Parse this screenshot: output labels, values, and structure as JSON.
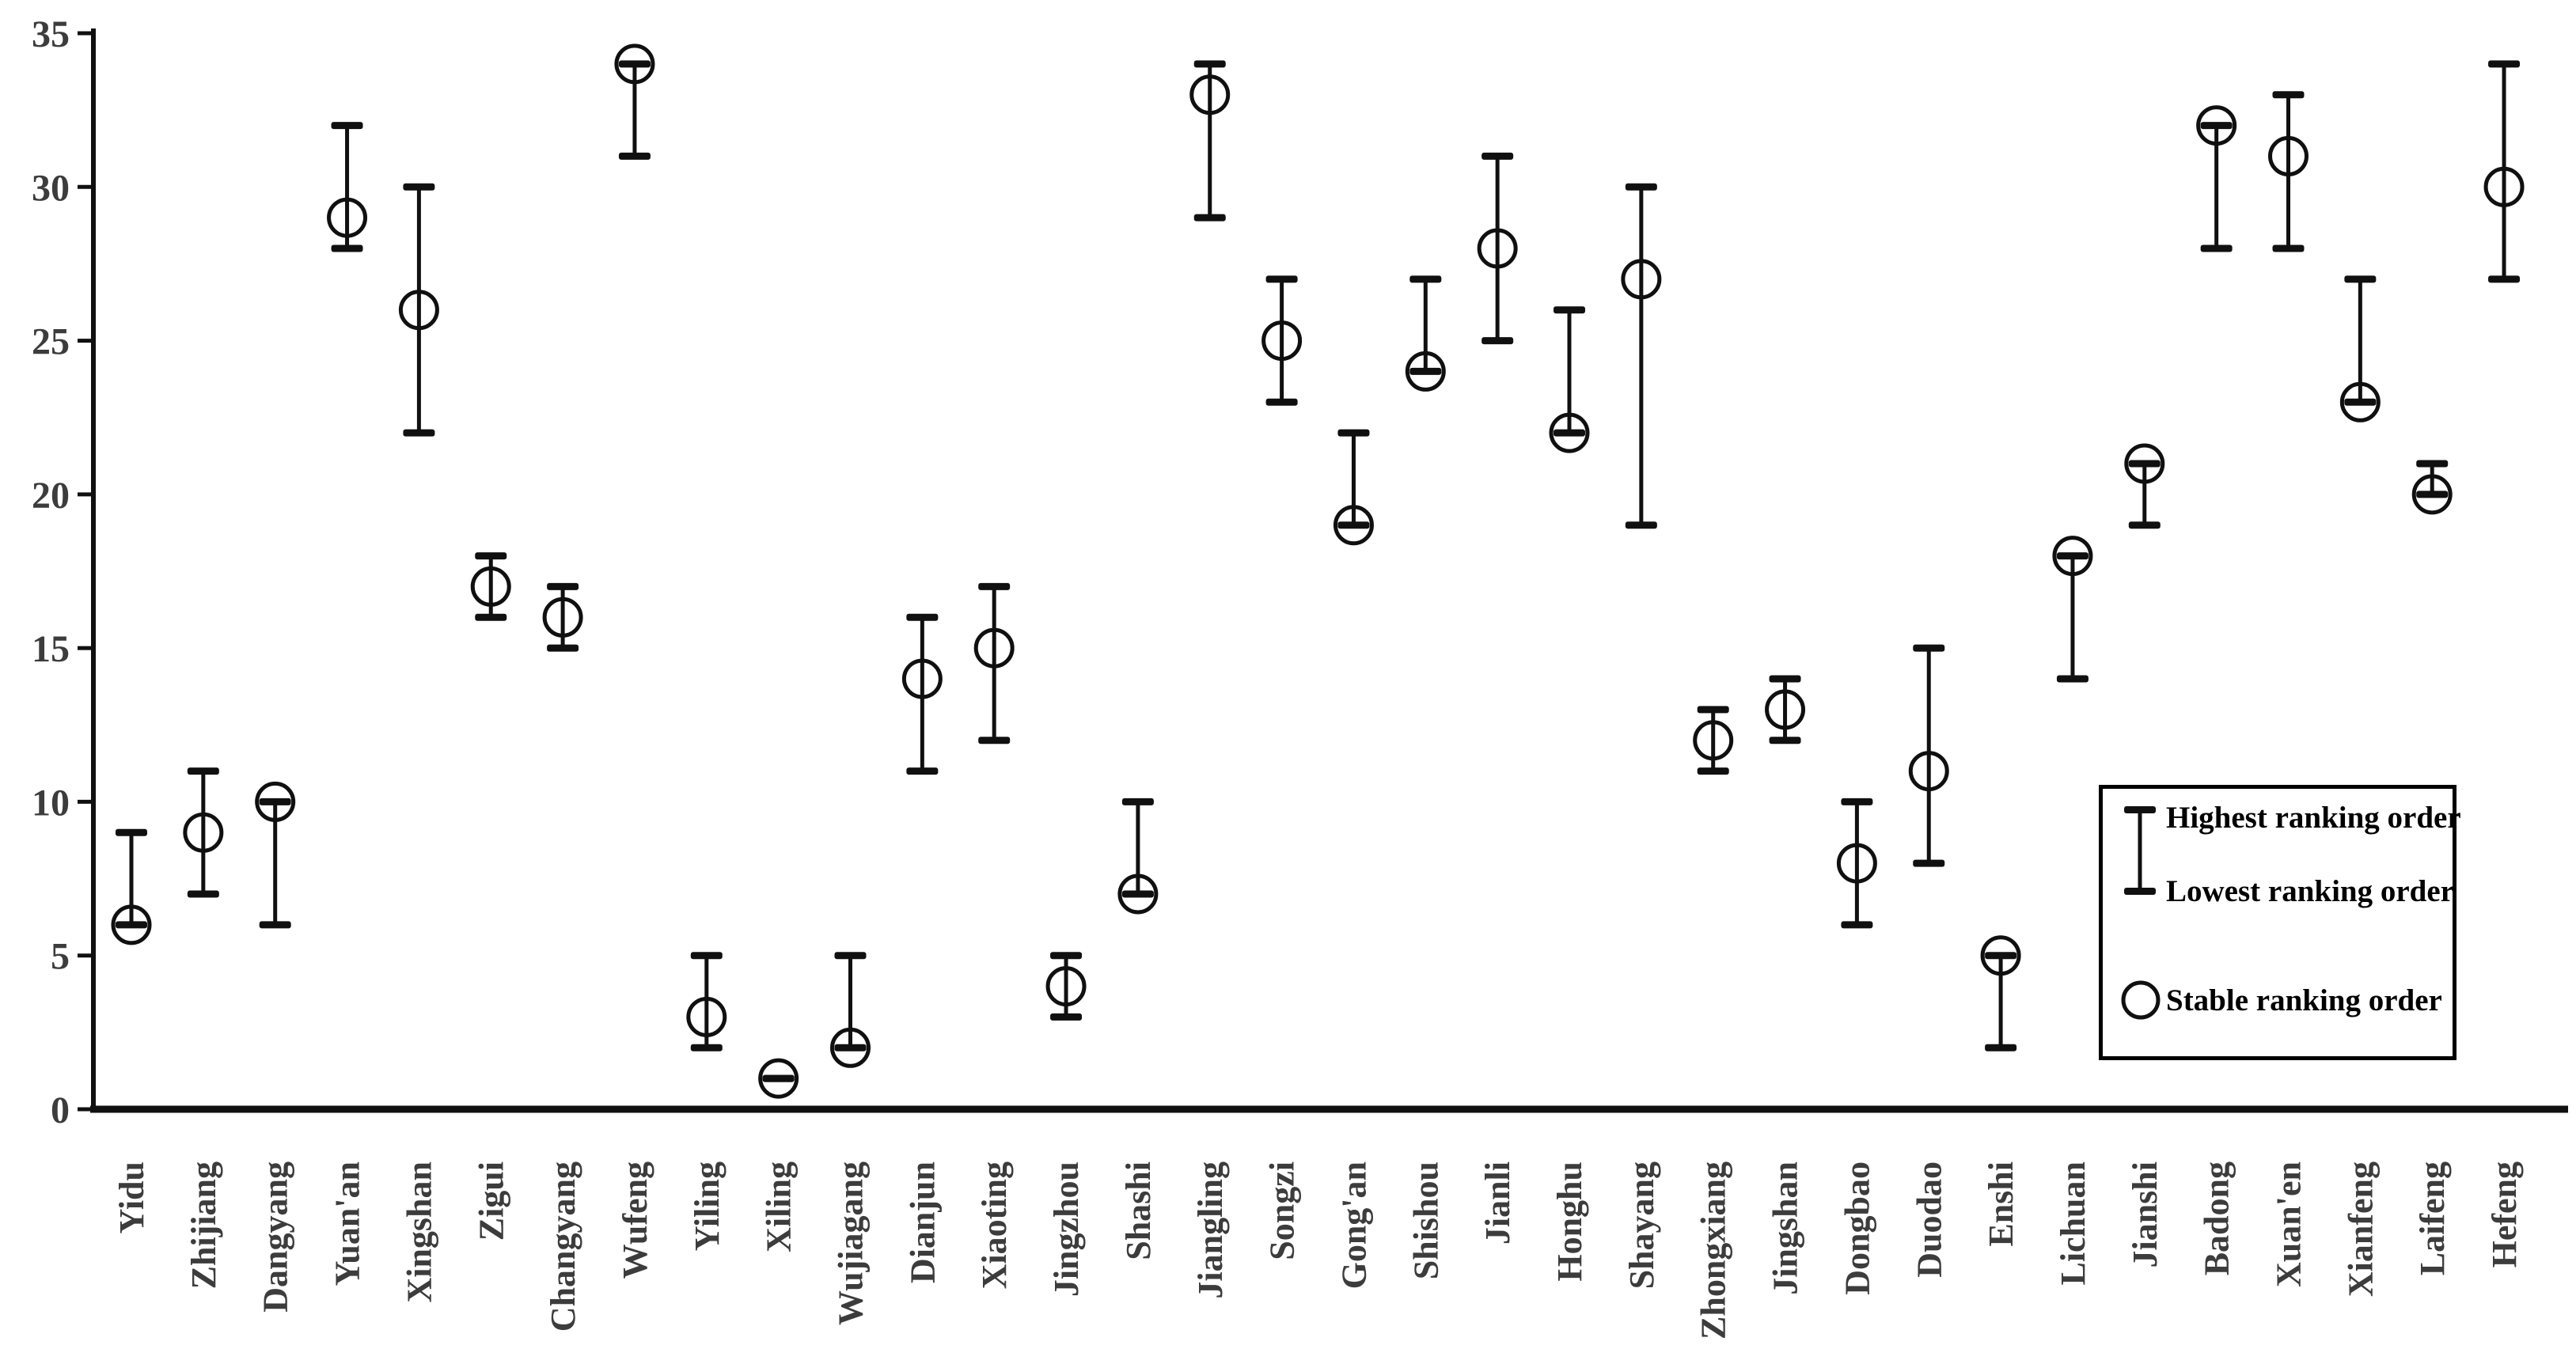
{
  "page": {
    "background": "#ffffff"
  },
  "chart_data": {
    "type": "scatter",
    "subtype": "ranking-range-error-bars",
    "title": "",
    "xlabel": "",
    "ylabel": "",
    "ylim": [
      0,
      35
    ],
    "yticks": [
      0,
      5,
      10,
      15,
      20,
      25,
      30,
      35
    ],
    "grid": false,
    "legend_position": "bottom-right",
    "marker_color": "#101010",
    "axis_label_color": "#3c3c3c",
    "categories": [
      "Yidu",
      "Zhijiang",
      "Dangyang",
      "Yuan'an",
      "Xingshan",
      "Zigui",
      "Changyang",
      "Wufeng",
      "Yiling",
      "Xiling",
      "Wujiagang",
      "Dianjun",
      "Xiaoting",
      "Jingzhou",
      "Shashi",
      "Jiangling",
      "Songzi",
      "Gong'an",
      "Shishou",
      "Jianli",
      "Honghu",
      "Shayang",
      "Zhongxiang",
      "Jingshan",
      "Dongbao",
      "Duodao",
      "Enshi",
      "Lichuan",
      "Jianshi",
      "Badong",
      "Xuan'en",
      "Xianfeng",
      "Laifeng",
      "Hefeng"
    ],
    "series": [
      {
        "name": "Highest ranking order",
        "values": [
          9,
          11,
          10,
          32,
          30,
          18,
          17,
          34,
          5,
          1,
          5,
          16,
          17,
          5,
          10,
          34,
          27,
          22,
          27,
          31,
          26,
          30,
          13,
          14,
          10,
          15,
          5,
          18,
          21,
          32,
          33,
          27,
          21,
          34
        ]
      },
      {
        "name": "Lowest ranking order",
        "values": [
          6,
          7,
          6,
          28,
          22,
          16,
          15,
          31,
          2,
          1,
          2,
          11,
          12,
          3,
          7,
          29,
          23,
          19,
          24,
          25,
          22,
          19,
          11,
          12,
          6,
          8,
          2,
          14,
          19,
          28,
          28,
          23,
          20,
          27
        ]
      },
      {
        "name": "Stable ranking order",
        "values": [
          6,
          9,
          10,
          29,
          26,
          17,
          16,
          34,
          3,
          1,
          2,
          14,
          15,
          4,
          7,
          33,
          25,
          19,
          24,
          28,
          22,
          27,
          12,
          13,
          8,
          11,
          5,
          18,
          21,
          32,
          31,
          23,
          20,
          30
        ]
      }
    ]
  },
  "legend": {
    "items": [
      {
        "label": "Highest ranking order"
      },
      {
        "label": "Lowest ranking order"
      },
      {
        "label": "Stable ranking order"
      }
    ]
  }
}
